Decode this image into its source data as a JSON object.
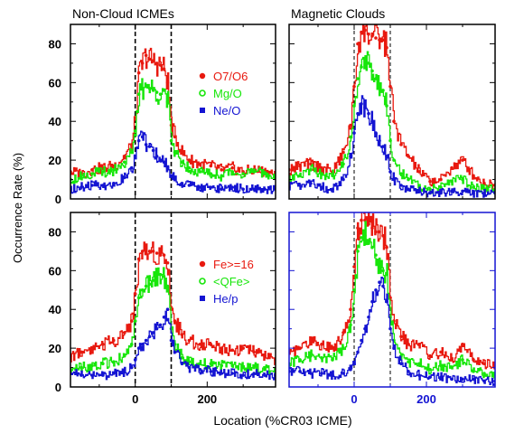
{
  "figure": {
    "ylabel": "Occurrence Rate (%)",
    "xlabel": "Location (%CR03 ICME)",
    "col_titles": [
      "Non-Cloud ICMEs",
      "Magnetic Clouds"
    ],
    "colors": {
      "red": "#e8190f",
      "green": "#17e60a",
      "blue": "#1414d2",
      "axis": "#000000",
      "axis_highlight": "#1414d2"
    }
  },
  "chart_data": [
    {
      "type": "line",
      "panel": "top-left",
      "title": "Non-Cloud ICMEs",
      "xlim": [
        -180,
        390
      ],
      "ylim": [
        0,
        90
      ],
      "xticks": [
        0,
        200
      ],
      "yticks": [
        0,
        20,
        40,
        60,
        80
      ],
      "ytick_labels": [
        "0",
        "20",
        "40",
        "60",
        "80"
      ],
      "vlines": [
        0,
        100
      ],
      "legend_placement": "right",
      "x": [
        -180,
        -150,
        -120,
        -90,
        -60,
        -30,
        -10,
        0,
        10,
        20,
        30,
        40,
        50,
        60,
        70,
        80,
        90,
        100,
        110,
        130,
        150,
        180,
        210,
        240,
        270,
        300,
        330,
        360,
        390
      ],
      "series": [
        {
          "name": "O7/O6",
          "color": "#e8190f",
          "marker": "circle-filled",
          "values": [
            14,
            13,
            15,
            16,
            17,
            22,
            28,
            42,
            65,
            70,
            74,
            72,
            71,
            70,
            69,
            67,
            60,
            38,
            32,
            24,
            20,
            18,
            17,
            15,
            16,
            14,
            15,
            14,
            13
          ]
        },
        {
          "name": "Mg/O",
          "color": "#17e60a",
          "marker": "circle-open",
          "values": [
            10,
            12,
            13,
            14,
            15,
            19,
            24,
            35,
            54,
            57,
            58,
            57,
            56,
            55,
            54,
            56,
            50,
            30,
            24,
            19,
            16,
            14,
            13,
            12,
            14,
            13,
            14,
            13,
            12
          ]
        },
        {
          "name": "Ne/O",
          "color": "#1414d2",
          "marker": "square-filled",
          "values": [
            5,
            6,
            7,
            7,
            8,
            11,
            16,
            22,
            30,
            32,
            28,
            27,
            25,
            22,
            20,
            19,
            16,
            12,
            10,
            8,
            7,
            6,
            6,
            5,
            6,
            5,
            5,
            5,
            5
          ]
        }
      ]
    },
    {
      "type": "line",
      "panel": "top-right",
      "title": "Magnetic Clouds",
      "xlim": [
        -180,
        390
      ],
      "ylim": [
        0,
        90
      ],
      "xticks": [
        0,
        200
      ],
      "yticks": [
        0,
        20,
        40,
        60,
        80
      ],
      "vlines": [
        0,
        100
      ],
      "x": [
        -180,
        -150,
        -120,
        -90,
        -60,
        -30,
        -10,
        0,
        10,
        20,
        30,
        40,
        50,
        60,
        70,
        80,
        90,
        100,
        110,
        130,
        150,
        180,
        210,
        240,
        270,
        300,
        330,
        360,
        390
      ],
      "series": [
        {
          "name": "O7/O6",
          "color": "#e8190f",
          "values": [
            15,
            17,
            18,
            16,
            14,
            24,
            38,
            58,
            80,
            86,
            87,
            85,
            84,
            83,
            82,
            82,
            78,
            58,
            40,
            28,
            22,
            14,
            9,
            10,
            16,
            20,
            12,
            8,
            7
          ]
        },
        {
          "name": "Mg/O",
          "color": "#17e60a",
          "values": [
            10,
            12,
            15,
            13,
            12,
            18,
            32,
            48,
            62,
            68,
            72,
            70,
            66,
            62,
            58,
            56,
            48,
            30,
            20,
            13,
            10,
            6,
            5,
            6,
            9,
            10,
            6,
            5,
            5
          ]
        },
        {
          "name": "Ne/O",
          "color": "#1414d2",
          "values": [
            6,
            7,
            8,
            6,
            5,
            10,
            22,
            34,
            44,
            49,
            47,
            44,
            40,
            34,
            30,
            27,
            22,
            14,
            10,
            7,
            5,
            4,
            3,
            3,
            4,
            4,
            3,
            3,
            3
          ]
        }
      ]
    },
    {
      "type": "line",
      "panel": "bottom-left",
      "xlim": [
        -180,
        390
      ],
      "ylim": [
        0,
        90
      ],
      "xticks": [
        0,
        200
      ],
      "yticks": [
        0,
        20,
        40,
        60,
        80
      ],
      "ytick_labels": [
        "0",
        "20",
        "40",
        "60",
        "80"
      ],
      "xtick_labels": [
        "0",
        "200"
      ],
      "vlines": [
        0,
        100
      ],
      "legend_placement": "right",
      "x": [
        -180,
        -150,
        -120,
        -90,
        -60,
        -30,
        -10,
        0,
        10,
        20,
        30,
        40,
        50,
        60,
        70,
        80,
        90,
        100,
        110,
        130,
        150,
        180,
        210,
        240,
        270,
        300,
        330,
        360,
        390
      ],
      "series": [
        {
          "name": "Fe>=16",
          "color": "#e8190f",
          "marker": "circle-filled",
          "values": [
            16,
            18,
            20,
            22,
            24,
            28,
            34,
            48,
            66,
            70,
            69,
            70,
            70,
            69,
            68,
            68,
            64,
            40,
            34,
            27,
            24,
            22,
            22,
            20,
            19,
            20,
            18,
            16,
            14
          ]
        },
        {
          "name": "<QFe>",
          "color": "#17e60a",
          "marker": "circle-open",
          "values": [
            9,
            10,
            11,
            12,
            13,
            16,
            22,
            34,
            46,
            50,
            52,
            53,
            55,
            56,
            58,
            57,
            52,
            30,
            22,
            15,
            13,
            12,
            12,
            11,
            11,
            10,
            10,
            9,
            8
          ]
        },
        {
          "name": "He/p",
          "color": "#1414d2",
          "marker": "square-filled",
          "values": [
            7,
            6,
            6,
            6,
            7,
            8,
            10,
            14,
            20,
            22,
            24,
            26,
            28,
            30,
            32,
            36,
            40,
            24,
            18,
            12,
            10,
            9,
            8,
            7,
            7,
            6,
            7,
            6,
            6
          ]
        }
      ]
    },
    {
      "type": "line",
      "panel": "bottom-right",
      "xlim": [
        -180,
        390
      ],
      "ylim": [
        0,
        90
      ],
      "xticks": [
        0,
        200
      ],
      "yticks": [
        0,
        20,
        40,
        60,
        80
      ],
      "xtick_labels": [
        "0",
        "200"
      ],
      "vlines": [
        0,
        100
      ],
      "x": [
        -180,
        -150,
        -120,
        -90,
        -60,
        -30,
        -10,
        0,
        10,
        20,
        30,
        40,
        50,
        60,
        70,
        80,
        90,
        100,
        110,
        130,
        150,
        180,
        210,
        240,
        270,
        300,
        330,
        360,
        390
      ],
      "series": [
        {
          "name": "Fe>=16",
          "color": "#e8190f",
          "values": [
            18,
            20,
            24,
            22,
            20,
            28,
            40,
            62,
            82,
            86,
            86,
            84,
            82,
            80,
            80,
            78,
            72,
            46,
            34,
            26,
            22,
            22,
            16,
            18,
            14,
            22,
            14,
            12,
            10
          ]
        },
        {
          "name": "<QFe>",
          "color": "#17e60a",
          "values": [
            12,
            14,
            16,
            15,
            14,
            20,
            32,
            50,
            70,
            77,
            78,
            74,
            72,
            68,
            62,
            60,
            58,
            36,
            24,
            16,
            13,
            12,
            9,
            11,
            10,
            14,
            8,
            7,
            6
          ]
        },
        {
          "name": "He/p",
          "color": "#1414d2",
          "values": [
            8,
            8,
            7,
            7,
            6,
            7,
            9,
            12,
            18,
            24,
            30,
            36,
            44,
            50,
            54,
            52,
            44,
            30,
            20,
            12,
            8,
            6,
            5,
            5,
            4,
            4,
            4,
            3,
            3
          ]
        }
      ]
    }
  ]
}
